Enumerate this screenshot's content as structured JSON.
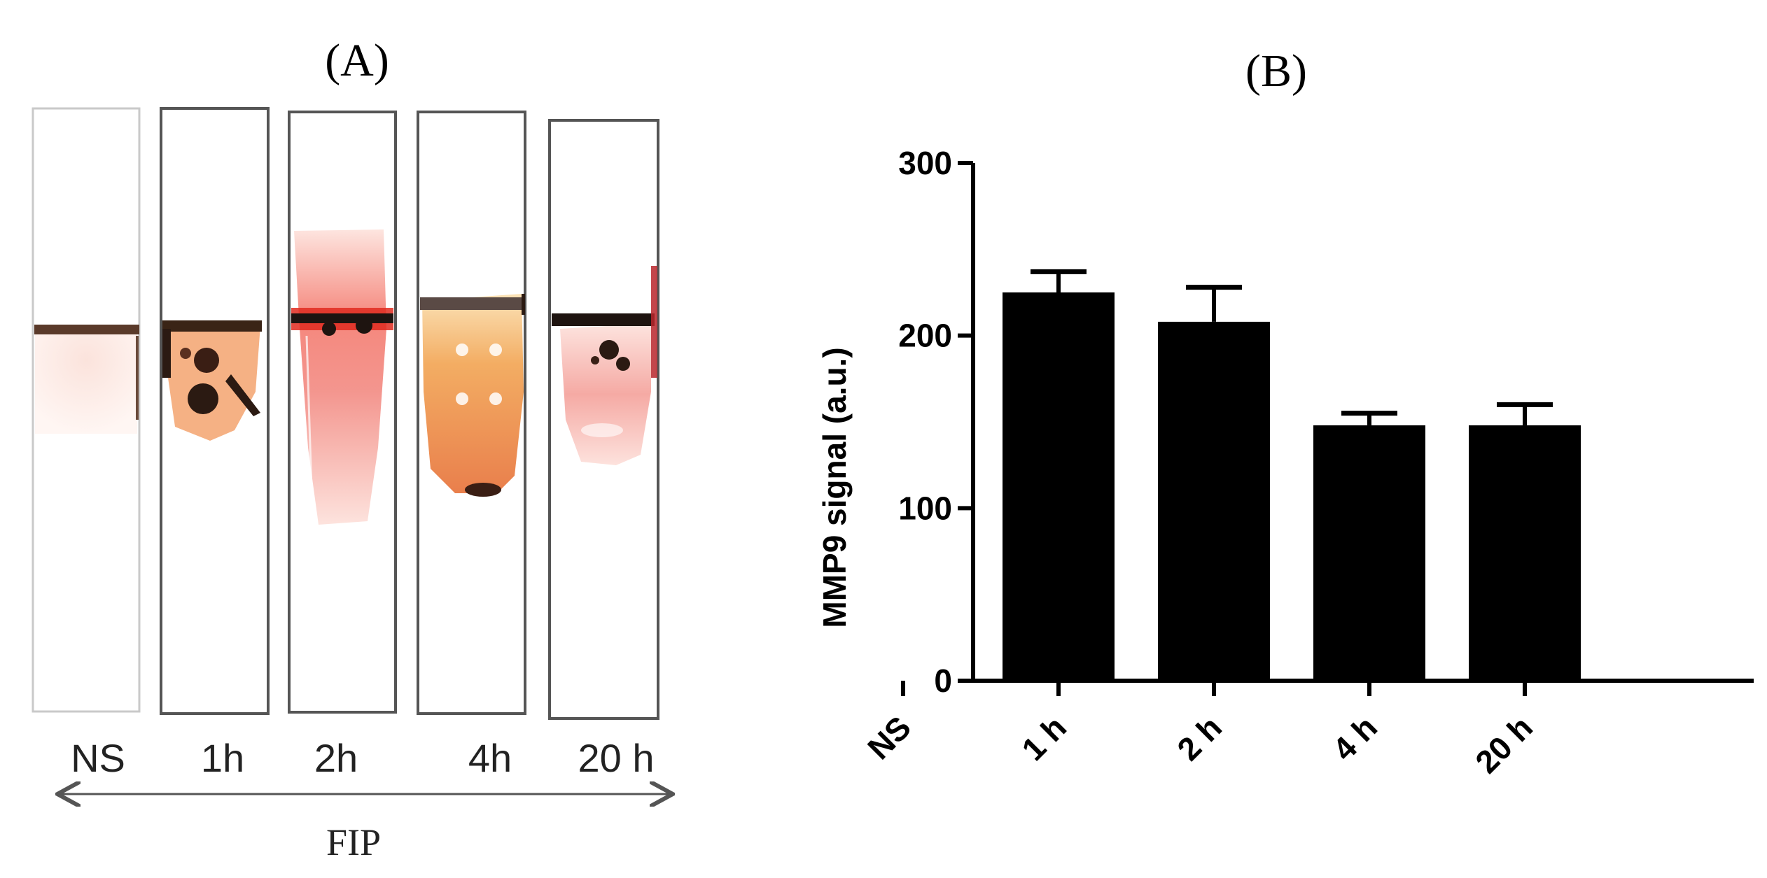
{
  "panel_a": {
    "label": "(A)",
    "strips": [
      {
        "label": "NS",
        "stain": "faint"
      },
      {
        "label": "1h",
        "stain": "dark-spots"
      },
      {
        "label": "2h",
        "stain": "red-smear"
      },
      {
        "label": "4h",
        "stain": "orange-wide"
      },
      {
        "label": "20 h",
        "stain": "pink-spots"
      }
    ],
    "arrow_label": "FIP",
    "colors": {
      "red": "#e8412f",
      "orange": "#f0a050",
      "pink": "#f3a3a0",
      "dark": "#2b1a12"
    }
  },
  "chart_data": {
    "type": "bar",
    "title": "(B)",
    "ylabel": "MMP9 signal (a.u.)",
    "xlabel": "",
    "categories": [
      "NS",
      "1 h",
      "2 h",
      "4 h",
      "20 h"
    ],
    "values": [
      0,
      225,
      208,
      148,
      148
    ],
    "errors": [
      0,
      12,
      20,
      7,
      12
    ],
    "ylim": [
      0,
      300
    ],
    "yticks": [
      0,
      100,
      200,
      300
    ],
    "bar_color": "#000000",
    "grid": false,
    "legend": "none"
  }
}
